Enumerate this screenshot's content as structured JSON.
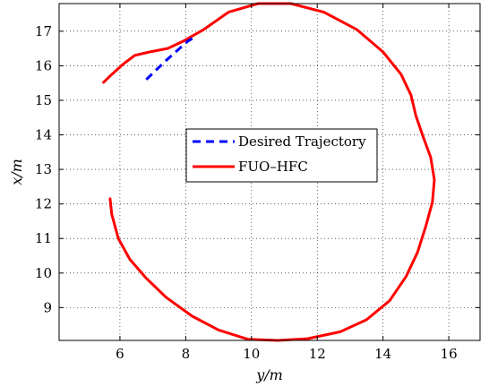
{
  "chart_data": {
    "type": "line",
    "title": "",
    "xlabel": "y/m",
    "ylabel": "x/m",
    "xlim": [
      4.15,
      16.95
    ],
    "ylim": [
      8.05,
      17.8
    ],
    "xticks": [
      6,
      8,
      10,
      12,
      14,
      16
    ],
    "yticks": [
      9,
      10,
      11,
      12,
      13,
      14,
      15,
      16,
      17
    ],
    "xtick_labels": [
      "6",
      "8",
      "10",
      "12",
      "14",
      "16"
    ],
    "ytick_labels": [
      "9",
      "10",
      "11",
      "12",
      "13",
      "14",
      "15",
      "16",
      "17"
    ],
    "grid": true,
    "legend_position": "center",
    "series": [
      {
        "name": "Desired Trajectory",
        "color": "#0000ff",
        "style": "dashed",
        "points": [
          [
            6.8,
            15.6
          ],
          [
            7.4,
            16.15
          ],
          [
            8.05,
            16.7
          ],
          [
            8.3,
            16.85
          ]
        ]
      },
      {
        "name": "FUO–HFC",
        "color": "#ff0000",
        "style": "solid",
        "points": [
          [
            5.7,
            12.15
          ],
          [
            5.75,
            11.7
          ],
          [
            5.95,
            11.0
          ],
          [
            6.3,
            10.4
          ],
          [
            6.8,
            9.85
          ],
          [
            7.4,
            9.3
          ],
          [
            8.2,
            8.75
          ],
          [
            9.0,
            8.35
          ],
          [
            9.9,
            8.08
          ],
          [
            10.8,
            8.05
          ],
          [
            11.7,
            8.1
          ],
          [
            12.7,
            8.3
          ],
          [
            13.5,
            8.65
          ],
          [
            14.2,
            9.2
          ],
          [
            14.7,
            9.9
          ],
          [
            15.05,
            10.6
          ],
          [
            15.3,
            11.35
          ],
          [
            15.5,
            12.05
          ],
          [
            15.56,
            12.7
          ],
          [
            15.45,
            13.35
          ],
          [
            15.2,
            14.0
          ],
          [
            15.0,
            14.55
          ],
          [
            14.85,
            15.15
          ],
          [
            14.55,
            15.75
          ],
          [
            14.0,
            16.4
          ],
          [
            13.2,
            17.05
          ],
          [
            12.2,
            17.55
          ],
          [
            11.2,
            17.8
          ],
          [
            10.2,
            17.8
          ],
          [
            9.3,
            17.55
          ],
          [
            8.55,
            17.05
          ],
          [
            7.9,
            16.7
          ],
          [
            7.45,
            16.5
          ],
          [
            6.9,
            16.4
          ],
          [
            6.45,
            16.3
          ],
          [
            6.1,
            16.05
          ],
          [
            5.75,
            15.75
          ],
          [
            5.5,
            15.52
          ]
        ]
      }
    ]
  }
}
